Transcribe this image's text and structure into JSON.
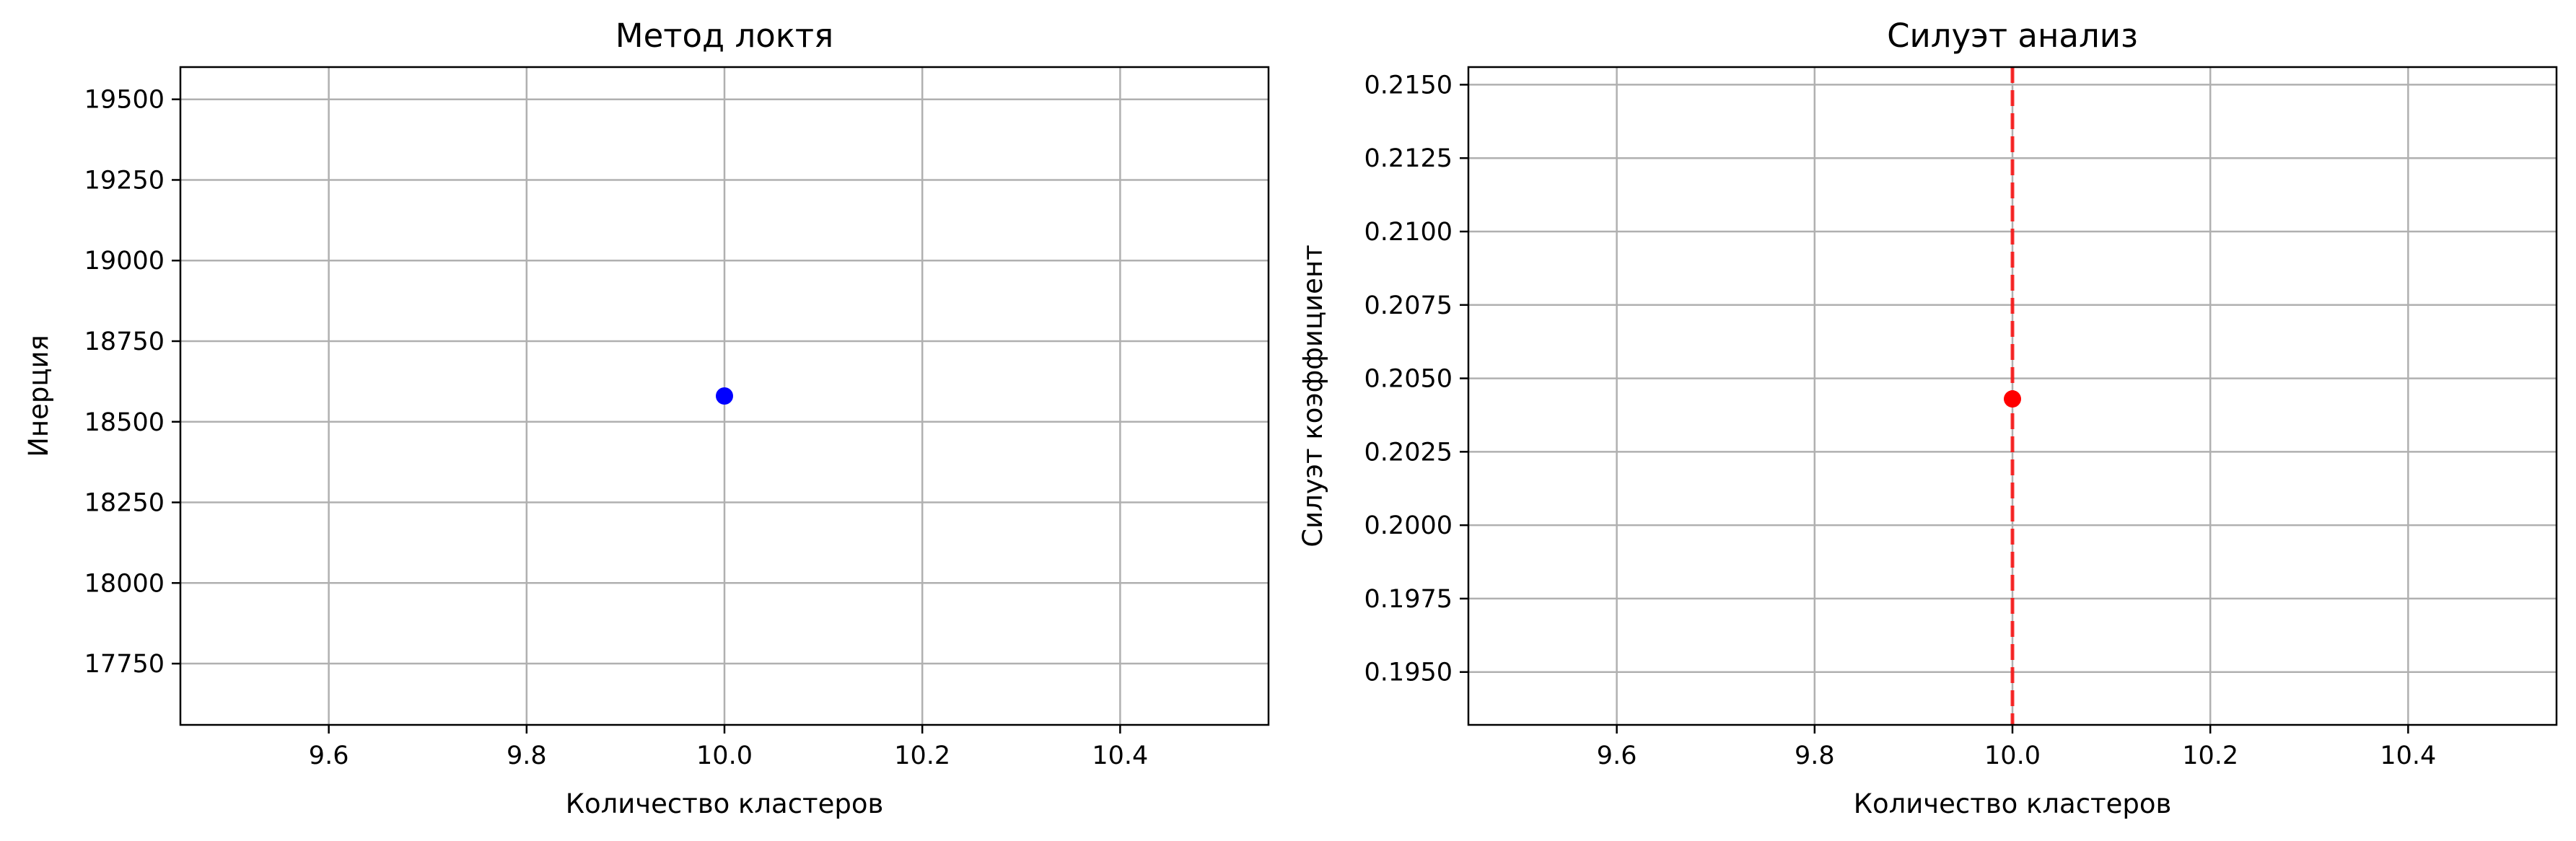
{
  "chart_data": [
    {
      "type": "scatter",
      "title": "Метод локтя",
      "xlabel": "Количество кластеров",
      "ylabel": "Инерция",
      "xlim": [
        9.45,
        10.55
      ],
      "ylim": [
        17560,
        19600
      ],
      "grid": true,
      "x_ticks": [
        9.6,
        9.8,
        10.0,
        10.2,
        10.4
      ],
      "x_tick_labels": [
        "9.6",
        "9.8",
        "10.0",
        "10.2",
        "10.4"
      ],
      "y_ticks": [
        17750,
        18000,
        18250,
        18500,
        18750,
        19000,
        19250,
        19500
      ],
      "y_tick_labels": [
        "17750",
        "18000",
        "18250",
        "18500",
        "18750",
        "19000",
        "19250",
        "19500"
      ],
      "series": [
        {
          "x": [
            10
          ],
          "y": [
            18580
          ],
          "color": "#0000ff",
          "marker": "o"
        }
      ]
    },
    {
      "type": "scatter",
      "title": "Силуэт анализ",
      "xlabel": "Количество кластеров",
      "ylabel": "Силуэт коэффициент",
      "xlim": [
        9.45,
        10.55
      ],
      "ylim": [
        0.1932,
        0.2156
      ],
      "grid": true,
      "x_ticks": [
        9.6,
        9.8,
        10.0,
        10.2,
        10.4
      ],
      "x_tick_labels": [
        "9.6",
        "9.8",
        "10.0",
        "10.2",
        "10.4"
      ],
      "y_ticks": [
        0.195,
        0.1975,
        0.2,
        0.2025,
        0.205,
        0.2075,
        0.21,
        0.2125,
        0.215
      ],
      "y_tick_labels": [
        "0.1950",
        "0.1975",
        "0.2000",
        "0.2025",
        "0.2050",
        "0.2075",
        "0.2100",
        "0.2125",
        "0.2150"
      ],
      "series": [
        {
          "x": [
            10
          ],
          "y": [
            0.2043
          ],
          "color": "#ff0000",
          "marker": "o"
        }
      ],
      "vline": {
        "x": 10,
        "color": "#ff0000",
        "style": "dashed"
      }
    }
  ]
}
